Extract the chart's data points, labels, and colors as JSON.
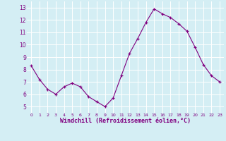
{
  "x": [
    0,
    1,
    2,
    3,
    4,
    5,
    6,
    7,
    8,
    9,
    10,
    11,
    12,
    13,
    14,
    15,
    16,
    17,
    18,
    19,
    20,
    21,
    22,
    23
  ],
  "y": [
    8.3,
    7.2,
    6.4,
    6.0,
    6.6,
    6.9,
    6.6,
    5.8,
    5.4,
    5.0,
    5.7,
    7.5,
    9.3,
    10.5,
    11.8,
    12.9,
    12.5,
    12.2,
    11.7,
    11.1,
    9.8,
    8.4,
    7.5,
    7.0
  ],
  "line_color": "#800080",
  "marker_color": "#800080",
  "bg_color": "#d4eef4",
  "grid_color": "#ffffff",
  "xlabel": "Windchill (Refroidissement éolien,°C)",
  "xlabel_color": "#800080",
  "tick_color": "#800080",
  "ylim": [
    4.5,
    13.5
  ],
  "xlim": [
    -0.5,
    23.5
  ],
  "yticks": [
    5,
    6,
    7,
    8,
    9,
    10,
    11,
    12,
    13
  ],
  "xticks": [
    0,
    1,
    2,
    3,
    4,
    5,
    6,
    7,
    8,
    9,
    10,
    11,
    12,
    13,
    14,
    15,
    16,
    17,
    18,
    19,
    20,
    21,
    22,
    23
  ],
  "tick_fontsize_x": 4.5,
  "tick_fontsize_y": 5.5,
  "xlabel_fontsize": 6.0,
  "xlabel_fontweight": "bold",
  "marker_size": 3.5,
  "line_width": 0.8
}
